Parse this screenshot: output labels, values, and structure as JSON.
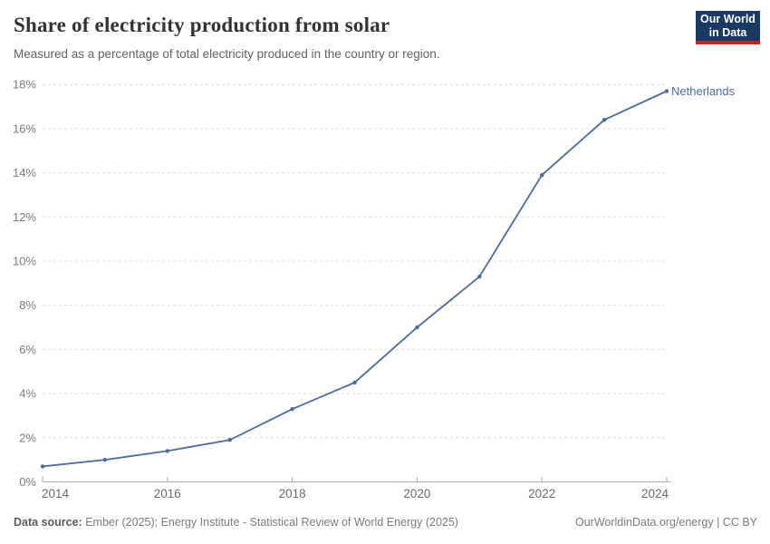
{
  "header": {
    "title": "Share of electricity production from solar",
    "subtitle": "Measured as a percentage of total electricity produced in the country or region."
  },
  "logo": {
    "line1": "Our World",
    "line2": "in Data"
  },
  "chart_data": {
    "type": "line",
    "title": "Share of electricity production from solar",
    "subtitle": "Measured as a percentage of total electricity produced in the country or region.",
    "x": [
      2014,
      2015,
      2016,
      2017,
      2018,
      2019,
      2020,
      2021,
      2022,
      2023,
      2024
    ],
    "series": [
      {
        "name": "Netherlands",
        "color": "#4C6A9C",
        "values": [
          0.7,
          1.0,
          1.4,
          1.9,
          3.3,
          4.5,
          7.0,
          9.3,
          13.9,
          16.4,
          17.7
        ]
      }
    ],
    "xlabel": "",
    "ylabel": "",
    "ylim": [
      0,
      18
    ],
    "ytick_step": 2,
    "ytick_suffix": "%",
    "xticks": [
      2014,
      2016,
      2018,
      2020,
      2022,
      2024
    ],
    "grid": "horizontal-dashed",
    "legend_position": "end-of-line-label"
  },
  "footer": {
    "datasource_label": "Data source:",
    "datasource_text": " Ember (2025); Energy Institute - Statistical Review of World Energy (2025)",
    "right_text": "OurWorldinData.org/energy | CC BY"
  },
  "colors": {
    "line": "#4C6A9C",
    "logo_navy": "#1a3a63",
    "logo_red": "#cb2026",
    "gridline": "#dcdcdc",
    "axis": "#ababab"
  }
}
